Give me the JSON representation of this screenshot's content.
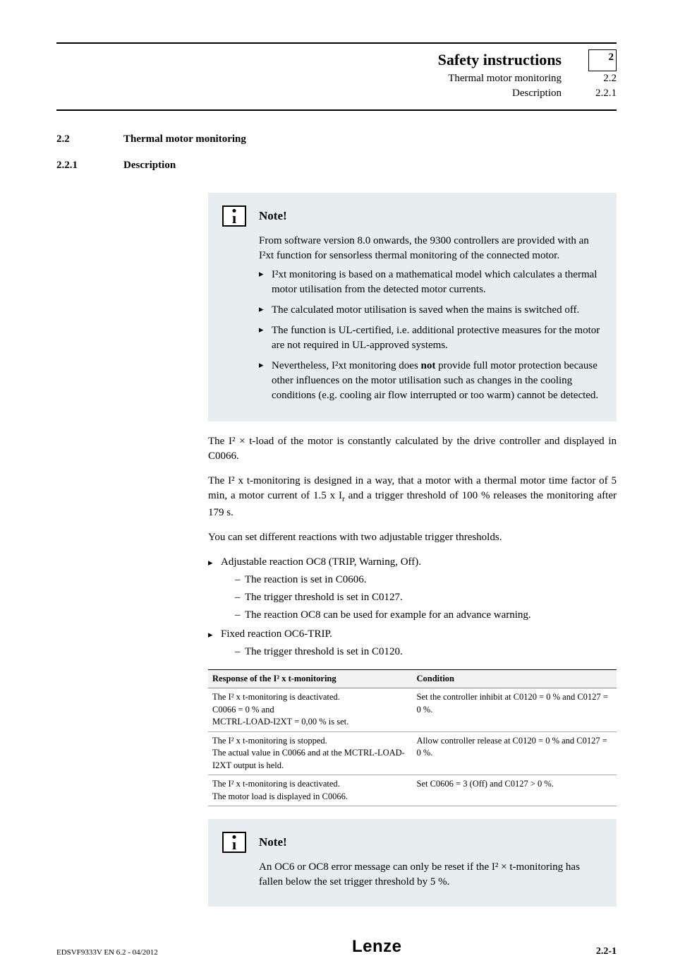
{
  "header": {
    "title": "Safety instructions",
    "line2_label": "Thermal motor monitoring",
    "line2_num": "2.2",
    "line3_label": "Description",
    "line3_num": "2.2.1",
    "chapter_num": "2"
  },
  "section": {
    "num1": "2.2",
    "title1": "Thermal motor monitoring",
    "num2": "2.2.1",
    "title2": "Description"
  },
  "note1": {
    "title": "Note!",
    "intro": "From software version 8.0 onwards, the 9300 controllers are provided with an I²xt function for sensorless thermal monitoring of the connected motor.",
    "bullets": [
      "I²xt monitoring is based on a mathematical model which calculates a thermal motor utilisation from the detected motor currents.",
      "The calculated motor utilisation is saved when the mains is switched off.",
      "The function is UL-certified, i.e. additional protective measures for the motor are not required in UL-approved systems.",
      "Nevertheless, I²xt monitoring does <b>not</b> provide full motor protection because other influences on the motor utilisation such as changes in the cooling conditions (e.g. cooling air flow interrupted or too warm) cannot be detected."
    ]
  },
  "body": {
    "p1": "The I² × t-load of the motor is constantly calculated by the drive controller and displayed in C0066.",
    "p2": "The I² x t-monitoring is designed in a way, that a motor with a thermal motor time factor of 5 min, a motor current of 1.5 x I<sub>r</sub> and a trigger threshold of 100 % releases the monitoring after 179 s.",
    "p3": "You can set different reactions with two adjustable trigger thresholds.",
    "list1_item1": "Adjustable reaction OC8 (TRIP, Warning, Off).",
    "list1_item1_sub": [
      "The reaction is set in C0606.",
      "The trigger threshold is set in C0127.",
      "The reaction OC8 can be used for example for an advance warning."
    ],
    "list1_item2": "Fixed reaction OC6-TRIP.",
    "list1_item2_sub": [
      "The trigger threshold is set in C0120."
    ]
  },
  "table": {
    "col1": "Response of the I² x t-monitoring",
    "col2": "Condition",
    "rows": [
      [
        "The I² x t-monitoring is deactivated.<br>C0066 = 0 % and<br>MCTRL-LOAD-I2XT = 0,00 % is set.",
        "Set the controller inhibit at C0120 = 0 % and C0127 = 0 %."
      ],
      [
        "The I² x t-monitoring is stopped.<br>The actual value in C0066 and at the MCTRL-LOAD-I2XT output is held.",
        "Allow controller release at C0120 = 0 % and C0127 = 0 %."
      ],
      [
        "The I² x t-monitoring is deactivated.<br>The motor load is displayed in C0066.",
        "Set C0606 = 3 (Off) and C0127 > 0 %."
      ]
    ]
  },
  "note2": {
    "title": "Note!",
    "body": "An OC6 or OC8 error message can only be reset if the I² × t-monitoring has fallen below the set trigger threshold by 5 %."
  },
  "footer": {
    "left": "EDSVF9333V  EN  6.2 - 04/2012",
    "logo": "Lenze",
    "right": "2.2-1"
  },
  "colors": {
    "note_bg": "#e8edef",
    "table_header_bg": "#f2f2f2"
  }
}
